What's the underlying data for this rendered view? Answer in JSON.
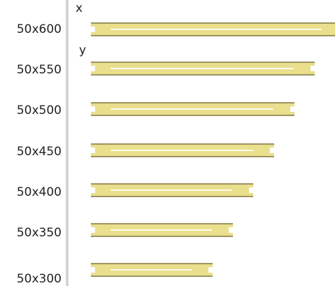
{
  "markers": [
    "x",
    "y"
  ],
  "items": [
    {
      "label": "50x600"
    },
    {
      "label": "50x550"
    },
    {
      "label": "50x500"
    },
    {
      "label": "50x450"
    },
    {
      "label": "50x400"
    },
    {
      "label": "50x350"
    },
    {
      "label": "50x300"
    }
  ]
}
